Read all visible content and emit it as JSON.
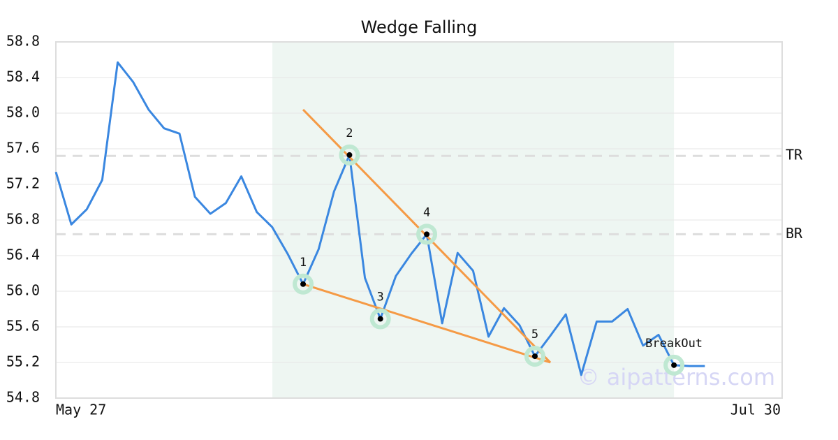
{
  "chart_data": {
    "type": "line",
    "title": "Wedge Falling",
    "categories": [
      "May 27",
      null,
      null,
      null,
      null,
      null,
      null,
      null,
      null,
      null,
      null,
      null,
      null,
      null,
      null,
      null,
      null,
      null,
      null,
      null,
      null,
      null,
      null,
      null,
      null,
      null,
      null,
      null,
      null,
      null,
      null,
      null,
      null,
      null,
      null,
      null,
      null,
      null,
      null,
      null,
      null,
      null,
      null,
      null,
      null,
      null,
      null,
      "Jul 30"
    ],
    "values": [
      57.34,
      56.75,
      56.92,
      57.25,
      58.57,
      58.35,
      58.04,
      57.83,
      57.77,
      57.06,
      56.87,
      56.99,
      57.29,
      56.89,
      56.72,
      56.42,
      56.08,
      56.47,
      57.12,
      57.53,
      56.15,
      55.69,
      56.17,
      56.42,
      56.64,
      55.64,
      56.43,
      56.23,
      55.49,
      55.81,
      55.62,
      55.27,
      55.5,
      55.74,
      55.06,
      55.66,
      55.66,
      55.8,
      55.39,
      55.51,
      55.17,
      55.16,
      55.16,
      null,
      null,
      null,
      null,
      null
    ],
    "color": "#3a87e0",
    "ylim": [
      54.8,
      58.8
    ],
    "yticks": [
      54.8,
      55.2,
      55.6,
      {
        "value": 56,
        "label": "56.0"
      },
      56.4,
      56.8,
      57.2,
      57.6,
      {
        "value": 58,
        "label": "58.0"
      },
      58.4,
      58.8
    ],
    "grid": true,
    "highlight": {
      "start": 16,
      "end": 40,
      "color": "#eef6f2"
    },
    "levels": [
      {
        "name": "TR",
        "value": 57.52
      },
      {
        "name": "BR",
        "value": 56.64
      }
    ],
    "trendlines": {
      "color": "#f59a45",
      "lines": [
        {
          "x": [
            16,
            32
          ],
          "values": [
            58.04,
            55.2
          ]
        },
        {
          "x": [
            16,
            32
          ],
          "values": [
            56.08,
            55.2
          ]
        }
      ]
    },
    "pivots": {
      "labels": [
        "1",
        "2",
        "3",
        "4",
        "5",
        "BreakOut"
      ],
      "x": [
        16,
        19,
        21,
        24,
        31,
        40
      ],
      "values": [
        56.08,
        57.53,
        55.69,
        56.64,
        55.27,
        55.17
      ]
    },
    "watermark": "© aipatterns.com"
  }
}
